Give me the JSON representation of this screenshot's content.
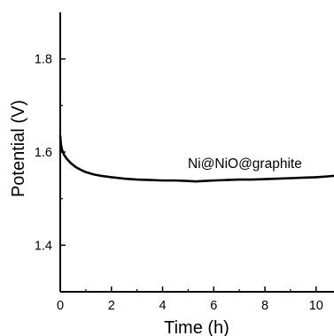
{
  "chart_data": {
    "type": "line",
    "xlabel": "Time (h)",
    "ylabel": "Potential (V)",
    "xlim": [
      0,
      10.7
    ],
    "ylim": [
      1.3,
      1.9
    ],
    "x_ticks": [
      0,
      2,
      4,
      6,
      8,
      10
    ],
    "y_ticks": [
      1.4,
      1.6,
      1.8
    ],
    "x_tick_labels": [
      "0",
      "2",
      "4",
      "6",
      "8",
      "10"
    ],
    "y_tick_labels": [
      "1.4",
      "1.6",
      "1.8"
    ],
    "series": [
      {
        "name": "Ni@NiO@graphite",
        "color": "#000000",
        "x": [
          0,
          0.03,
          0.08,
          0.15,
          0.25,
          0.4,
          0.6,
          0.8,
          1.0,
          1.3,
          1.6,
          2.0,
          2.5,
          3.0,
          3.5,
          4.0,
          4.5,
          5.0,
          5.3,
          5.6,
          6.0,
          6.5,
          7.0,
          7.5,
          8.0,
          8.5,
          9.0,
          9.5,
          10.0,
          10.5,
          10.7
        ],
        "y": [
          1.635,
          1.615,
          1.603,
          1.594,
          1.586,
          1.577,
          1.568,
          1.562,
          1.557,
          1.552,
          1.549,
          1.546,
          1.543,
          1.541,
          1.54,
          1.539,
          1.539,
          1.538,
          1.537,
          1.538,
          1.539,
          1.54,
          1.541,
          1.541,
          1.542,
          1.543,
          1.544,
          1.545,
          1.546,
          1.548,
          1.549
        ]
      }
    ],
    "grid": false,
    "legend": "none"
  }
}
